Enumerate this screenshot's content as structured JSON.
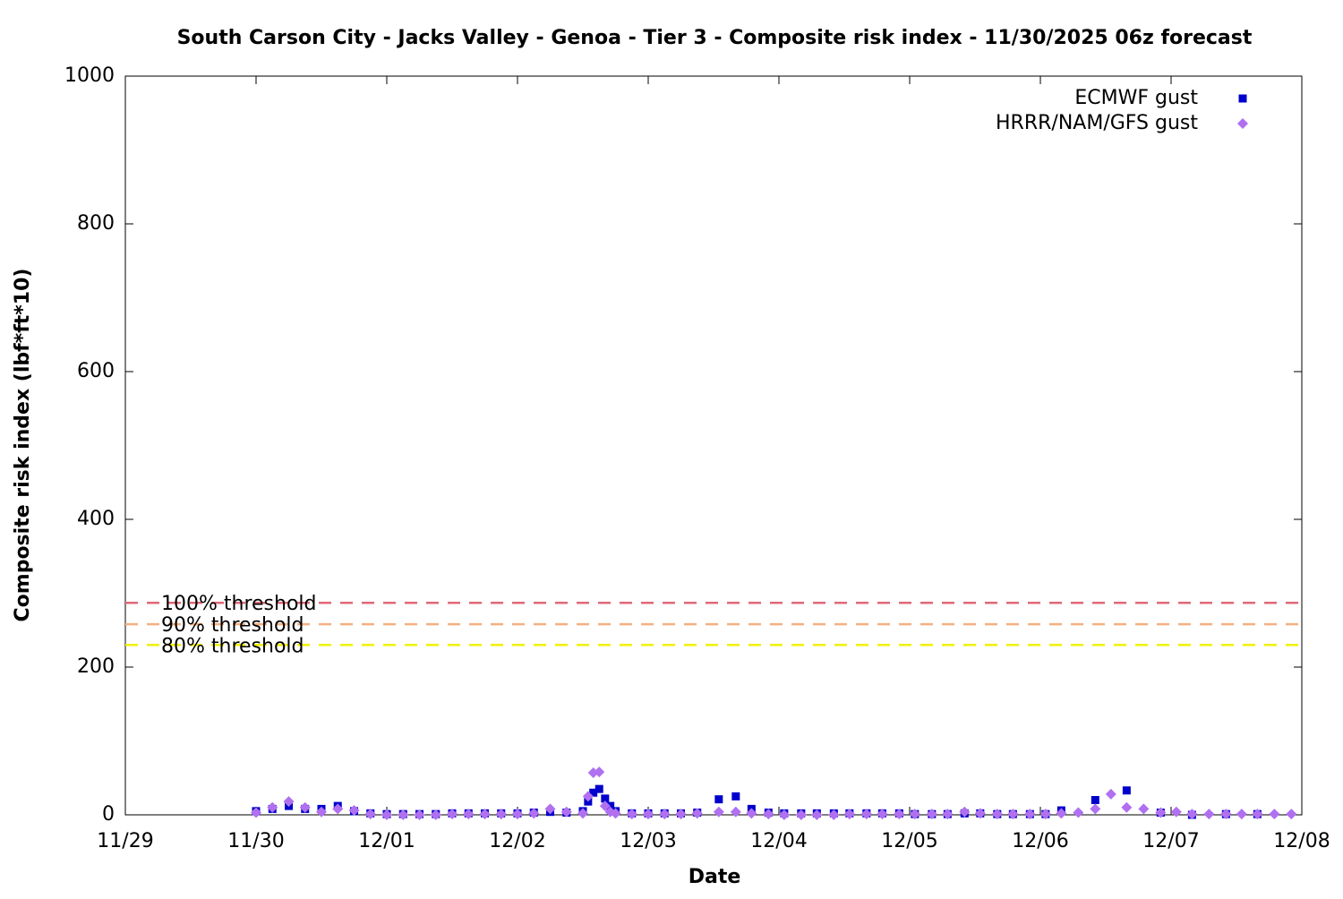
{
  "chart_data": {
    "type": "scatter",
    "title": "South Carson City - Jacks Valley - Genoa - Tier 3 - Composite risk index - 11/30/2025 06z forecast",
    "xlabel": "Date",
    "ylabel": "Composite risk index (lbf*ft*10)",
    "xlim": [
      0,
      9
    ],
    "xticks": [
      {
        "value": 0,
        "label": "11/29"
      },
      {
        "value": 1,
        "label": "11/30"
      },
      {
        "value": 2,
        "label": "12/01"
      },
      {
        "value": 3,
        "label": "12/02"
      },
      {
        "value": 4,
        "label": "12/03"
      },
      {
        "value": 5,
        "label": "12/04"
      },
      {
        "value": 6,
        "label": "12/05"
      },
      {
        "value": 7,
        "label": "12/06"
      },
      {
        "value": 8,
        "label": "12/07"
      },
      {
        "value": 9,
        "label": "12/08"
      }
    ],
    "ylim": [
      0,
      1000
    ],
    "yticks": [
      0,
      200,
      400,
      600,
      800,
      1000
    ],
    "legend": "top-right",
    "thresholds": [
      {
        "name": "100% threshold",
        "value": 287,
        "color": "#e06878"
      },
      {
        "name": "90% threshold",
        "value": 258,
        "color": "#f4b080"
      },
      {
        "name": "80% threshold",
        "value": 230,
        "color": "#f0f000"
      }
    ],
    "series": [
      {
        "name": "ECMWF gust",
        "color": "#0000cc",
        "marker": "square",
        "x": [
          1.0,
          1.125,
          1.25,
          1.375,
          1.5,
          1.625,
          1.75,
          1.875,
          2.0,
          2.125,
          2.25,
          2.375,
          2.5,
          2.625,
          2.75,
          2.875,
          3.0,
          3.125,
          3.25,
          3.375,
          3.5,
          3.54,
          3.58,
          3.625,
          3.67,
          3.71,
          3.75,
          3.875,
          4.0,
          4.125,
          4.25,
          4.375,
          4.54,
          4.67,
          4.79,
          4.92,
          5.04,
          5.17,
          5.29,
          5.42,
          5.54,
          5.67,
          5.79,
          5.92,
          6.04,
          6.17,
          6.29,
          6.42,
          6.54,
          6.67,
          6.79,
          6.92,
          7.04,
          7.16,
          7.42,
          7.66,
          7.92,
          8.16,
          8.42,
          8.66
        ],
        "values": [
          5,
          8,
          12,
          8,
          8,
          12,
          5,
          2,
          1,
          1,
          1,
          1,
          2,
          2,
          2,
          2,
          2,
          3,
          4,
          3,
          5,
          18,
          30,
          35,
          22,
          12,
          5,
          2,
          2,
          2,
          2,
          3,
          21,
          25,
          8,
          3,
          2,
          2,
          2,
          2,
          2,
          2,
          2,
          2,
          1,
          1,
          1,
          2,
          2,
          1,
          1,
          1,
          1,
          6,
          20,
          33,
          3,
          0,
          1,
          1
        ]
      },
      {
        "name": "HRRR/NAM/GFS gust",
        "color": "#b070f0",
        "marker": "diamond",
        "x": [
          1.0,
          1.125,
          1.25,
          1.375,
          1.5,
          1.625,
          1.75,
          1.875,
          2.0,
          2.125,
          2.25,
          2.375,
          2.5,
          2.625,
          2.75,
          2.875,
          3.0,
          3.125,
          3.25,
          3.375,
          3.5,
          3.54,
          3.58,
          3.625,
          3.67,
          3.71,
          3.75,
          3.875,
          4.0,
          4.125,
          4.25,
          4.375,
          4.54,
          4.67,
          4.79,
          4.92,
          5.04,
          5.17,
          5.29,
          5.42,
          5.54,
          5.67,
          5.79,
          5.92,
          6.04,
          6.17,
          6.29,
          6.42,
          6.54,
          6.67,
          6.79,
          6.92,
          7.04,
          7.16,
          7.29,
          7.42,
          7.54,
          7.66,
          7.79,
          7.92,
          8.04,
          8.16,
          8.29,
          8.42,
          8.54,
          8.66,
          8.79,
          8.92
        ],
        "values": [
          3,
          10,
          18,
          10,
          4,
          8,
          6,
          1,
          0,
          0,
          0,
          0,
          1,
          1,
          1,
          1,
          1,
          2,
          8,
          4,
          2,
          25,
          57,
          58,
          12,
          4,
          2,
          1,
          1,
          1,
          1,
          2,
          4,
          4,
          2,
          1,
          0,
          0,
          0,
          0,
          1,
          1,
          1,
          1,
          1,
          1,
          1,
          4,
          2,
          1,
          1,
          1,
          1,
          2,
          3,
          8,
          28,
          10,
          8,
          3,
          4,
          1,
          1,
          1,
          1,
          1,
          1,
          1
        ]
      }
    ]
  }
}
